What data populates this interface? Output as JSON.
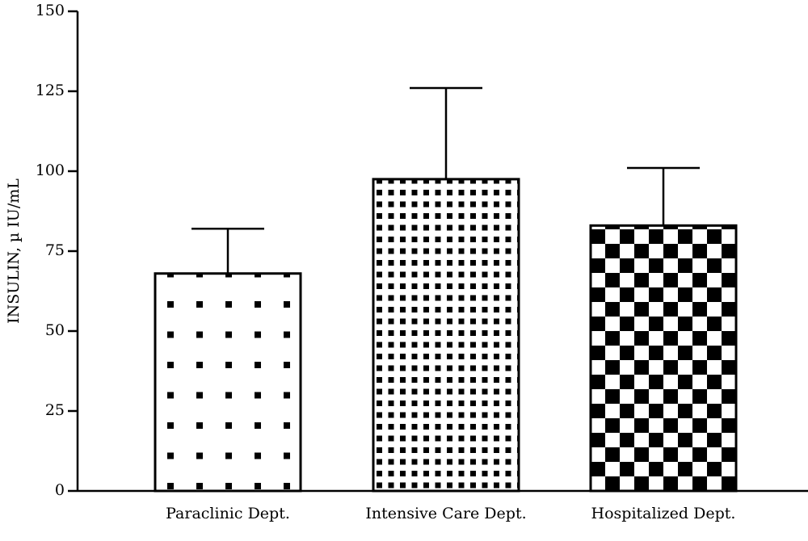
{
  "chart_data": {
    "type": "bar",
    "y_label": "INSULIN, µ IU/mL",
    "categories": [
      "Paraclinic Dept.",
      "Intensive Care Dept.",
      "Hospitalized Dept."
    ],
    "values": [
      68,
      97.5,
      83
    ],
    "errors": [
      14,
      28.5,
      18
    ],
    "patterns": [
      "sparse-dots",
      "dense-dots",
      "checker"
    ],
    "ylim": [
      0,
      150
    ],
    "yticks": [
      0,
      25,
      50,
      75,
      100,
      125,
      150
    ]
  }
}
